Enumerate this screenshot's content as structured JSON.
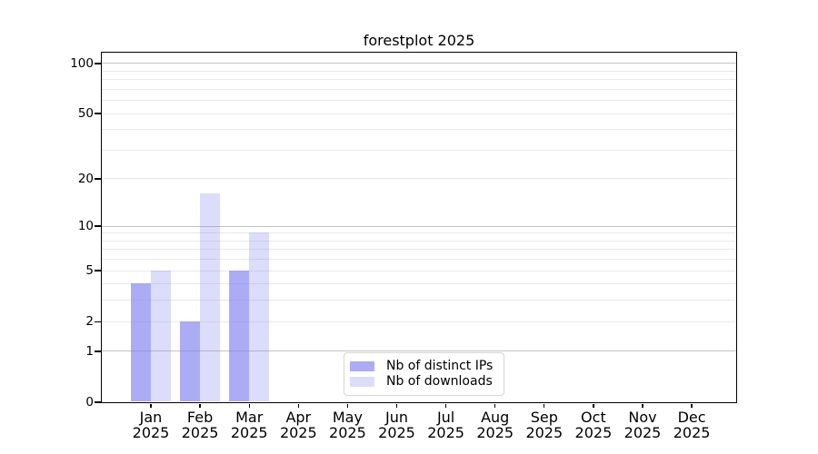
{
  "chart_data": {
    "type": "bar",
    "title": "forestplot 2025",
    "categories": [
      "Jan",
      "Feb",
      "Mar",
      "Apr",
      "May",
      "Jun",
      "Jul",
      "Aug",
      "Sep",
      "Oct",
      "Nov",
      "Dec"
    ],
    "xtick_second_line": "2025",
    "series": [
      {
        "name": "Nb of distinct IPs",
        "values": [
          4,
          2,
          5,
          0,
          0,
          0,
          0,
          0,
          0,
          0,
          0,
          0
        ],
        "color": "rgba(121,121,239,0.62)"
      },
      {
        "name": "Nb of downloads",
        "values": [
          5,
          16,
          9,
          0,
          0,
          0,
          0,
          0,
          0,
          0,
          0,
          0
        ],
        "color": "rgba(121,121,239,0.26)"
      }
    ],
    "xlabel": "",
    "ylabel": "",
    "yscale": "log10(1+x)",
    "ylim": [
      0,
      116
    ],
    "ytick_labels": [
      0,
      1,
      2,
      5,
      10,
      20,
      50,
      100
    ],
    "grid": {
      "major_lines": [
        1,
        10,
        100
      ],
      "minor_lines": [
        2,
        3,
        4,
        5,
        6,
        7,
        8,
        9,
        20,
        30,
        40,
        50,
        60,
        70,
        80,
        90
      ],
      "major_color": "#c3c3c3",
      "minor_color": "#e9e9e9"
    },
    "legend": {
      "position": "lower center",
      "entries": [
        "Nb of distinct IPs",
        "Nb of downloads"
      ]
    }
  }
}
